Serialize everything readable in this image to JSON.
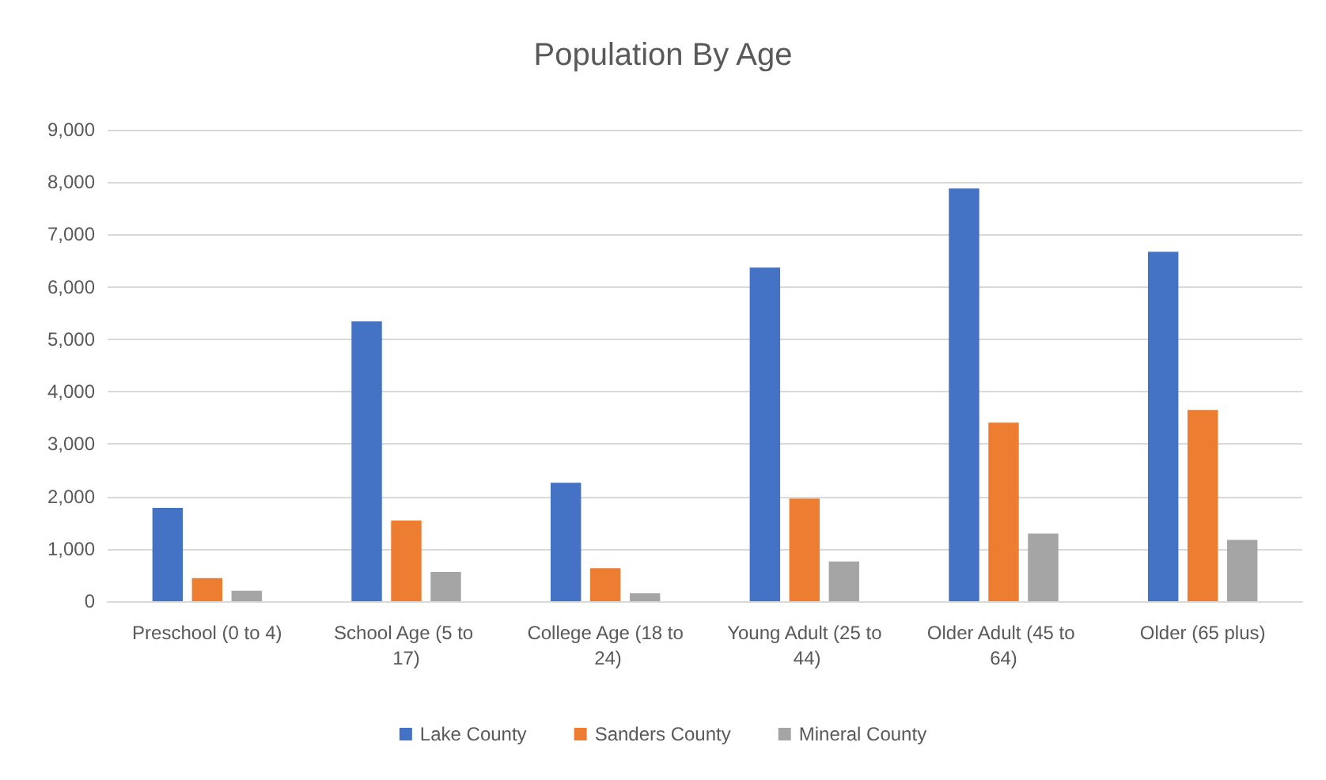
{
  "chart_data": {
    "type": "bar",
    "title": "Population By Age",
    "categories": [
      "Preschool (0 to 4)",
      "School Age (5 to 17)",
      "College Age (18 to 24)",
      "Young Adult (25 to 44)",
      "Older Adult (45 to 64)",
      "Older (65 plus)"
    ],
    "series": [
      {
        "name": "Lake County",
        "color": "#4472c4",
        "values": [
          1780,
          5340,
          2260,
          6370,
          7880,
          6670
        ]
      },
      {
        "name": "Sanders County",
        "color": "#ed7d31",
        "values": [
          440,
          1540,
          630,
          1960,
          3410,
          3650
        ]
      },
      {
        "name": "Mineral County",
        "color": "#a5a5a5",
        "values": [
          200,
          560,
          150,
          760,
          1290,
          1170
        ]
      }
    ],
    "ylim": [
      0,
      9000
    ],
    "yticks": [
      0,
      {
        "value": 1000,
        "label": "1,000"
      },
      {
        "value": 2000,
        "label": "2,000"
      },
      {
        "value": 3000,
        "label": "3,000"
      },
      {
        "value": 4000,
        "label": "4,000"
      },
      {
        "value": 5000,
        "label": "5,000"
      },
      {
        "value": 6000,
        "label": "6,000"
      },
      {
        "value": 7000,
        "label": "7,000"
      },
      {
        "value": 8000,
        "label": "8,000"
      },
      {
        "value": 9000,
        "label": "9,000"
      }
    ],
    "grid": "y",
    "legend": "bottom"
  }
}
